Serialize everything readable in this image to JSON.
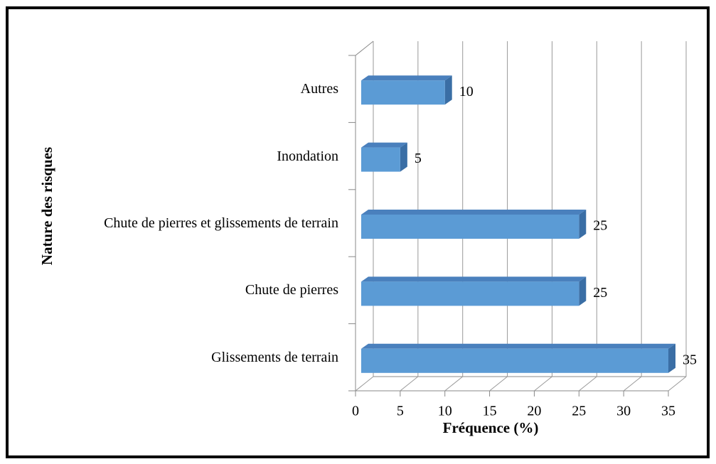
{
  "chart_data": {
    "type": "bar",
    "orientation": "horizontal",
    "categories": [
      "Autres",
      "Inondation",
      "Chute de pierres et glissements de terrain",
      "Chute de pierres",
      "Glissements de terrain"
    ],
    "values": [
      10,
      5,
      25,
      25,
      35
    ],
    "color": "#5b9bd5",
    "x_label": "Fréquence (%)",
    "y_label": "Nature des risques",
    "xlim": [
      0,
      35
    ],
    "xticks": [
      0,
      5,
      10,
      15,
      20,
      25,
      30,
      35
    ],
    "grid": true
  }
}
